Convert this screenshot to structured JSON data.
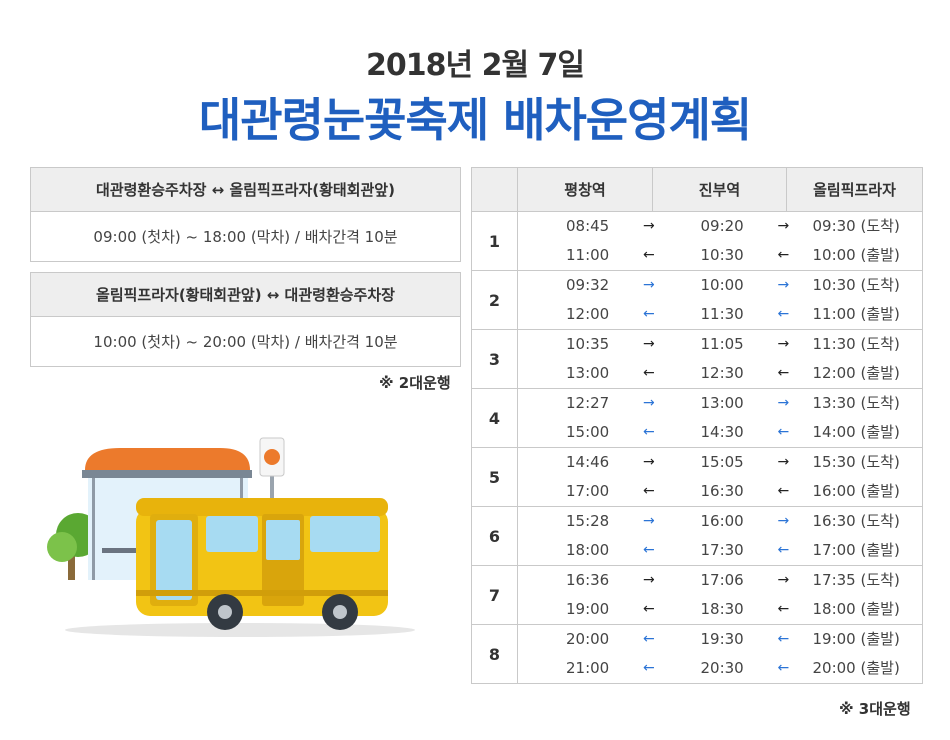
{
  "header": {
    "date": "2018년 2월 7일",
    "title": "대관령눈꽃축제 배차운영계획",
    "title_color": "#1f5fbf"
  },
  "routes": [
    {
      "name": "대관령환승주차장 ↔ 올림픽프라자(황태회관앞)",
      "schedule": "09:00 (첫차) ~ 18:00 (막차) / 배차간격 10분"
    },
    {
      "name": "올림픽프라자(황태회관앞) ↔ 대관령환승주차장",
      "schedule": "10:00 (첫차) ~ 20:00 (막차) / 배차간격 10분"
    }
  ],
  "notes": {
    "left": "※ 2대운행",
    "right": "※ 3대운행"
  },
  "schedule": {
    "headers": [
      "평창역",
      "진부역",
      "올림픽프라자"
    ],
    "arrow_dark": "#222222",
    "arrow_blue": "#2b74d6",
    "groups": [
      {
        "no": "1",
        "rows": [
          {
            "a": "08:45",
            "b": "09:20",
            "c": "09:30 (도착)",
            "dir": "→",
            "blue": false
          },
          {
            "a": "11:00",
            "b": "10:30",
            "c": "10:00 (출발)",
            "dir": "←",
            "blue": false
          }
        ]
      },
      {
        "no": "2",
        "rows": [
          {
            "a": "09:32",
            "b": "10:00",
            "c": "10:30 (도착)",
            "dir": "→",
            "blue": true
          },
          {
            "a": "12:00",
            "b": "11:30",
            "c": "11:00 (출발)",
            "dir": "←",
            "blue": true
          }
        ]
      },
      {
        "no": "3",
        "rows": [
          {
            "a": "10:35",
            "b": "11:05",
            "c": "11:30 (도착)",
            "dir": "→",
            "blue": false
          },
          {
            "a": "13:00",
            "b": "12:30",
            "c": "12:00 (출발)",
            "dir": "←",
            "blue": false
          }
        ]
      },
      {
        "no": "4",
        "rows": [
          {
            "a": "12:27",
            "b": "13:00",
            "c": "13:30 (도착)",
            "dir": "→",
            "blue": true
          },
          {
            "a": "15:00",
            "b": "14:30",
            "c": "14:00 (출발)",
            "dir": "←",
            "blue": true
          }
        ]
      },
      {
        "no": "5",
        "rows": [
          {
            "a": "14:46",
            "b": "15:05",
            "c": "15:30 (도착)",
            "dir": "→",
            "blue": false
          },
          {
            "a": "17:00",
            "b": "16:30",
            "c": "16:00 (출발)",
            "dir": "←",
            "blue": false
          }
        ]
      },
      {
        "no": "6",
        "rows": [
          {
            "a": "15:28",
            "b": "16:00",
            "c": "16:30 (도착)",
            "dir": "→",
            "blue": true
          },
          {
            "a": "18:00",
            "b": "17:30",
            "c": "17:00 (출발)",
            "dir": "←",
            "blue": true
          }
        ]
      },
      {
        "no": "7",
        "rows": [
          {
            "a": "16:36",
            "b": "17:06",
            "c": "17:35 (도착)",
            "dir": "→",
            "blue": false
          },
          {
            "a": "19:00",
            "b": "18:30",
            "c": "18:00 (출발)",
            "dir": "←",
            "blue": false
          }
        ]
      },
      {
        "no": "8",
        "rows": [
          {
            "a": "20:00",
            "b": "19:30",
            "c": "19:00 (출발)",
            "dir": "←",
            "blue": true
          },
          {
            "a": "21:00",
            "b": "20:30",
            "c": "20:00 (출발)",
            "dir": "←",
            "blue": true
          }
        ]
      }
    ]
  }
}
